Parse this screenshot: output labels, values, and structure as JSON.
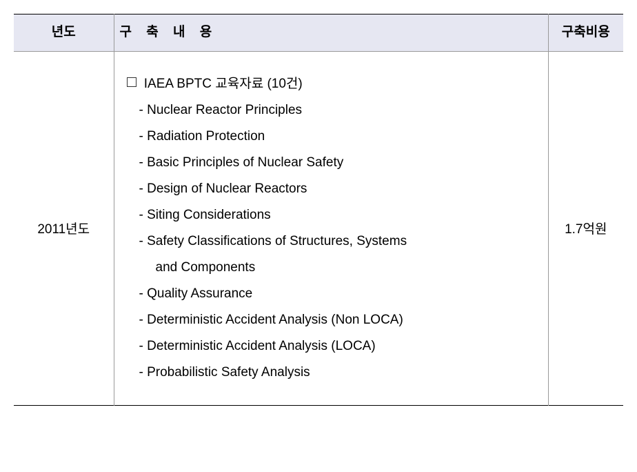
{
  "table": {
    "headers": {
      "year": "년도",
      "content": "구 축 내 용",
      "cost": "구축비용"
    },
    "row": {
      "year": "2011년도",
      "cost": "1.7억원",
      "section_title": "IAEA BPTC 교육자료 (10건)",
      "items": [
        "Nuclear Reactor Principles",
        "Radiation Protection",
        "Basic Principles of Nuclear Safety",
        "Design of Nuclear Reactors",
        "Siting Considerations",
        "Safety Classifications of Structures, Systems",
        "and Components",
        "Quality Assurance",
        "Deterministic Accident Analysis (Non LOCA)",
        "Deterministic Accident Analysis (LOCA)",
        "Probabilistic Safety Analysis"
      ],
      "indent_indices": [
        6
      ]
    }
  },
  "style": {
    "header_bg": "#e6e7f2",
    "border_color": "#999999",
    "outer_border_color": "#000000",
    "font_size_pt": 14,
    "text_color": "#000000"
  }
}
